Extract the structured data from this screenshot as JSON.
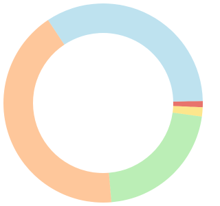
{
  "chart_data": {
    "type": "donut",
    "values": [
      1,
      1.5,
      21.5,
      42,
      34
    ],
    "colors": [
      "#e8736c",
      "#fde68c",
      "#bbeeb6",
      "#fec79b",
      "#bee2ef"
    ]
  }
}
